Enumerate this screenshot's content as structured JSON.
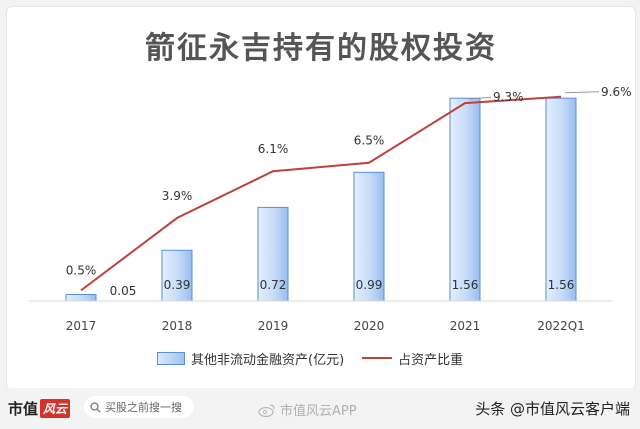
{
  "chart_data": {
    "type": "bar",
    "title": "箭征永吉持有的股权投资",
    "categories": [
      "2017",
      "2018",
      "2019",
      "2020",
      "2021",
      "2022Q1"
    ],
    "series": [
      {
        "name": "其他非流动金融资产(亿元)",
        "type": "bar",
        "values": [
          0.05,
          0.39,
          0.72,
          0.99,
          1.56,
          1.56
        ],
        "labels": [
          "0.05",
          "0.39",
          "0.72",
          "0.99",
          "1.56",
          "1.56"
        ],
        "color": "#9fc3f0",
        "edge_color": "#5b8fd6"
      },
      {
        "name": "占资产比重",
        "type": "line",
        "values": [
          0.5,
          3.9,
          6.1,
          6.5,
          9.3,
          9.6
        ],
        "labels": [
          "0.5%",
          "3.9%",
          "6.1%",
          "6.5%",
          "9.3%",
          "9.6%"
        ],
        "color": "#c0413b"
      }
    ],
    "ylim_bar": [
      0,
      1.6
    ],
    "ylim_line": [
      0,
      11
    ],
    "grid": false,
    "legend_position": "bottom"
  },
  "footer": {
    "brand_prefix": "市值",
    "brand_seal": "风云",
    "search_placeholder": "买股之前搜一搜",
    "app_watermark": "市值风云APP",
    "credit": "头条 @市值风云客户端"
  },
  "colors": {
    "background": "#f3f3f3",
    "title": "#555555",
    "accent": "#d6322c"
  }
}
